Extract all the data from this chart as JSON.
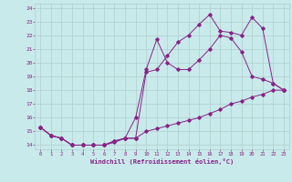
{
  "xlabel": "Windchill (Refroidissement éolien,°C)",
  "background_color": "#c8eaea",
  "line_color": "#882288",
  "grid_color": "#b0cece",
  "xlim": [
    -0.5,
    23.5
  ],
  "ylim": [
    13.7,
    24.3
  ],
  "yticks": [
    14,
    15,
    16,
    17,
    18,
    19,
    20,
    21,
    22,
    23,
    24
  ],
  "xticks": [
    0,
    1,
    2,
    3,
    4,
    5,
    6,
    7,
    8,
    9,
    10,
    11,
    12,
    13,
    14,
    15,
    16,
    17,
    18,
    19,
    20,
    21,
    22,
    23
  ],
  "line1_x": [
    0,
    1,
    2,
    3,
    4,
    5,
    6,
    7,
    8,
    9,
    10,
    11,
    12,
    13,
    14,
    15,
    16,
    17,
    18,
    19,
    20,
    21,
    22,
    23
  ],
  "line1_y": [
    15.3,
    14.7,
    14.5,
    14.0,
    14.0,
    14.0,
    14.0,
    14.2,
    14.5,
    14.5,
    15.0,
    15.2,
    15.4,
    15.6,
    15.8,
    16.0,
    16.3,
    16.6,
    17.0,
    17.2,
    17.5,
    17.7,
    18.0,
    18.0
  ],
  "line2_x": [
    0,
    1,
    2,
    3,
    4,
    5,
    6,
    7,
    8,
    9,
    10,
    11,
    12,
    13,
    14,
    15,
    16,
    17,
    18,
    19,
    20,
    21,
    22,
    23
  ],
  "line2_y": [
    15.3,
    14.7,
    14.5,
    14.0,
    14.0,
    14.0,
    14.0,
    14.3,
    14.5,
    16.0,
    19.5,
    21.7,
    20.0,
    19.5,
    19.5,
    20.2,
    21.0,
    22.0,
    21.8,
    20.8,
    19.0,
    18.8,
    18.5,
    18.0
  ],
  "line3_x": [
    0,
    1,
    2,
    3,
    4,
    5,
    6,
    7,
    8,
    9,
    10,
    11,
    12,
    13,
    14,
    15,
    16,
    17,
    18,
    19,
    20,
    21,
    22,
    23
  ],
  "line3_y": [
    15.3,
    14.7,
    14.5,
    14.0,
    14.0,
    14.0,
    14.0,
    14.3,
    14.5,
    14.5,
    19.3,
    19.5,
    20.5,
    21.5,
    22.0,
    22.8,
    23.5,
    22.3,
    22.2,
    22.0,
    23.3,
    22.5,
    18.5,
    18.0
  ]
}
